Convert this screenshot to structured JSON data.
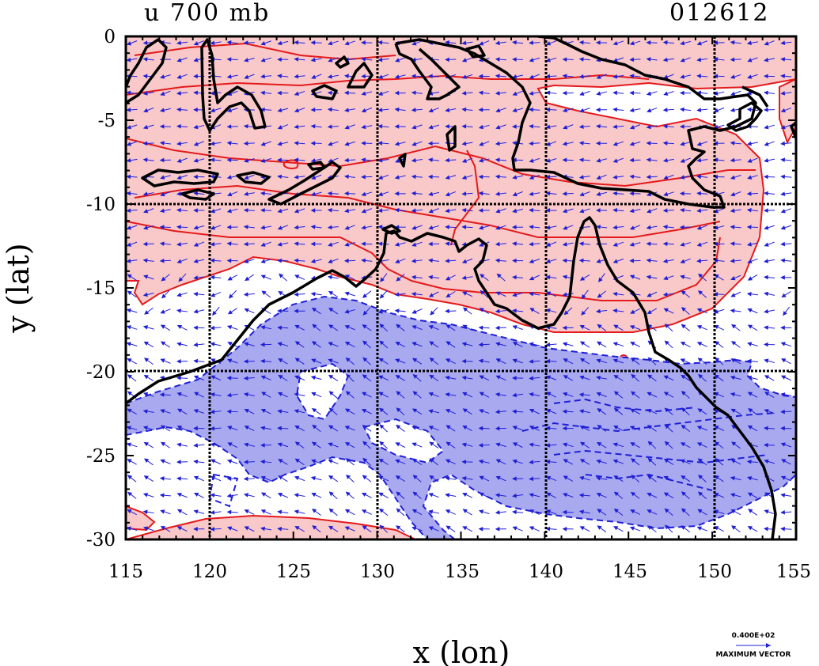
{
  "title": "u 700 mb",
  "time_label": "012612",
  "xlabel": "x (lon)",
  "ylabel": "y (lat)",
  "x_ticks": [
    "115",
    "120",
    "125",
    "130",
    "135",
    "140",
    "145",
    "150",
    "155"
  ],
  "y_ticks": [
    "0",
    "-5",
    "-10",
    "-15",
    "-20",
    "-25",
    "-30"
  ],
  "vector_key": {
    "value_text": "0.400E+02",
    "label": "MAXIMUM VECTOR"
  },
  "colors": {
    "positive_fill": "#f9c8c8",
    "positive_contour": "#e41a1c",
    "negative_fill": "#a9a9f0",
    "negative_contour": "#1f1fd6",
    "coastline": "#000000",
    "vectors": "#1f1fd6"
  },
  "map": {
    "lon_range": [
      115,
      155
    ],
    "lat_range": [
      -30,
      0
    ],
    "grid_lines_lon": [
      120,
      130,
      140,
      150
    ],
    "grid_lines_lat": [
      -10,
      -20
    ],
    "region": "Northern Australia / Indonesia",
    "field": "u-component wind, shaded positive/negative with wind vectors"
  }
}
